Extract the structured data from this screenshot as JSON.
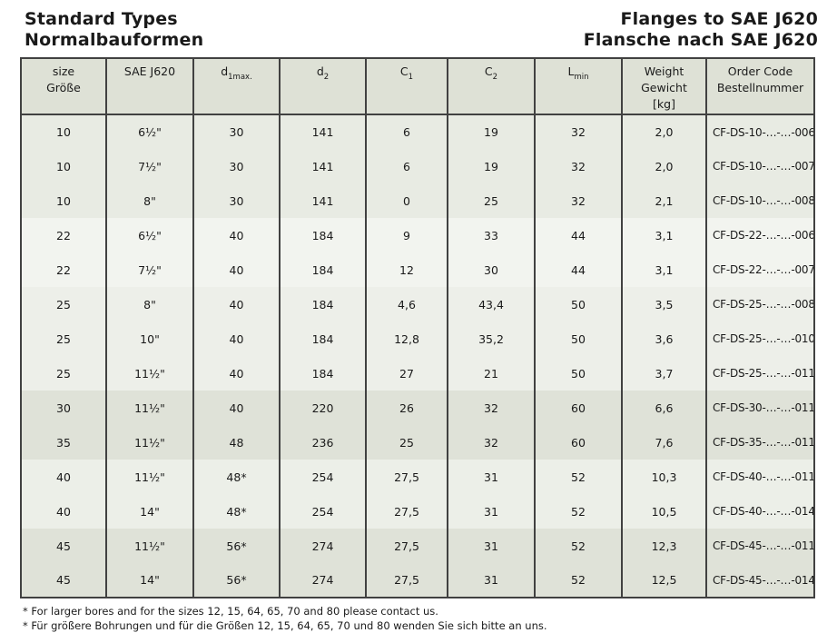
{
  "header": {
    "title_en": "Standard Types",
    "title_de": "Normalbauformen",
    "right_en": "Flanges to SAE J620",
    "right_de": "Flansche nach SAE J620"
  },
  "table": {
    "columns": [
      {
        "name": "size",
        "lines": [
          "size",
          "Größe"
        ]
      },
      {
        "name": "sae-j620",
        "lines": [
          "SAE J620"
        ]
      },
      {
        "name": "d1max",
        "base": "d",
        "sub": "1max."
      },
      {
        "name": "d2",
        "base": "d",
        "sub": "2"
      },
      {
        "name": "c1",
        "base": "C",
        "sub": "1"
      },
      {
        "name": "c2",
        "base": "C",
        "sub": "2"
      },
      {
        "name": "lmin",
        "base": "L",
        "sub": "min"
      },
      {
        "name": "weight",
        "lines": [
          "Weight",
          "Gewicht",
          "[kg]"
        ]
      },
      {
        "name": "order-code",
        "lines": [
          "Order Code",
          "Bestellnummer"
        ]
      }
    ],
    "band_colors": {
      "b10": "#e8ebe3",
      "b22": "#f2f4ef",
      "b25": "#edefe9",
      "b30": "#dfe2d8",
      "b40": "#ecefe8",
      "b45": "#dfe2d8"
    },
    "header_bg": "#dee1d6",
    "rows": [
      {
        "band": "b10",
        "cells": [
          "10",
          "6½\"",
          "30",
          "141",
          "6",
          "19",
          "32",
          "2,0",
          "CF-DS-10-…-…-006"
        ]
      },
      {
        "band": "b10",
        "cells": [
          "10",
          "7½\"",
          "30",
          "141",
          "6",
          "19",
          "32",
          "2,0",
          "CF-DS-10-…-…-007"
        ]
      },
      {
        "band": "b10",
        "cells": [
          "10",
          "8\"",
          "30",
          "141",
          "0",
          "25",
          "32",
          "2,1",
          "CF-DS-10-…-…-008"
        ]
      },
      {
        "band": "b22",
        "cells": [
          "22",
          "6½\"",
          "40",
          "184",
          "9",
          "33",
          "44",
          "3,1",
          "CF-DS-22-…-…-006"
        ]
      },
      {
        "band": "b22",
        "cells": [
          "22",
          "7½\"",
          "40",
          "184",
          "12",
          "30",
          "44",
          "3,1",
          "CF-DS-22-…-…-007"
        ]
      },
      {
        "band": "b25",
        "cells": [
          "25",
          "8\"",
          "40",
          "184",
          "4,6",
          "43,4",
          "50",
          "3,5",
          "CF-DS-25-…-…-008"
        ]
      },
      {
        "band": "b25",
        "cells": [
          "25",
          "10\"",
          "40",
          "184",
          "12,8",
          "35,2",
          "50",
          "3,6",
          "CF-DS-25-…-…-010"
        ]
      },
      {
        "band": "b25",
        "cells": [
          "25",
          "11½\"",
          "40",
          "184",
          "27",
          "21",
          "50",
          "3,7",
          "CF-DS-25-…-…-011"
        ]
      },
      {
        "band": "b30",
        "cells": [
          "30",
          "11½\"",
          "40",
          "220",
          "26",
          "32",
          "60",
          "6,6",
          "CF-DS-30-…-…-011"
        ]
      },
      {
        "band": "b30",
        "cells": [
          "35",
          "11½\"",
          "48",
          "236",
          "25",
          "32",
          "60",
          "7,6",
          "CF-DS-35-…-…-011"
        ]
      },
      {
        "band": "b40",
        "cells": [
          "40",
          "11½\"",
          "48*",
          "254",
          "27,5",
          "31",
          "52",
          "10,3",
          "CF-DS-40-…-…-011"
        ]
      },
      {
        "band": "b40",
        "cells": [
          "40",
          "14\"",
          "48*",
          "254",
          "27,5",
          "31",
          "52",
          "10,5",
          "CF-DS-40-…-…-014"
        ]
      },
      {
        "band": "b45",
        "cells": [
          "45",
          "11½\"",
          "56*",
          "274",
          "27,5",
          "31",
          "52",
          "12,3",
          "CF-DS-45-…-…-011"
        ]
      },
      {
        "band": "b45",
        "cells": [
          "45",
          "14\"",
          "56*",
          "274",
          "27,5",
          "31",
          "52",
          "12,5",
          "CF-DS-45-…-…-014"
        ]
      }
    ]
  },
  "footnotes": {
    "en": "* For larger bores and for the sizes 12, 15, 64, 65, 70 and 80 please contact us.",
    "de": "* Für größere Bohrungen und für die Größen 12, 15, 64, 65, 70 und 80 wenden Sie sich bitte an uns."
  },
  "colors": {
    "border": "#414141",
    "text": "#1a1a1a"
  }
}
